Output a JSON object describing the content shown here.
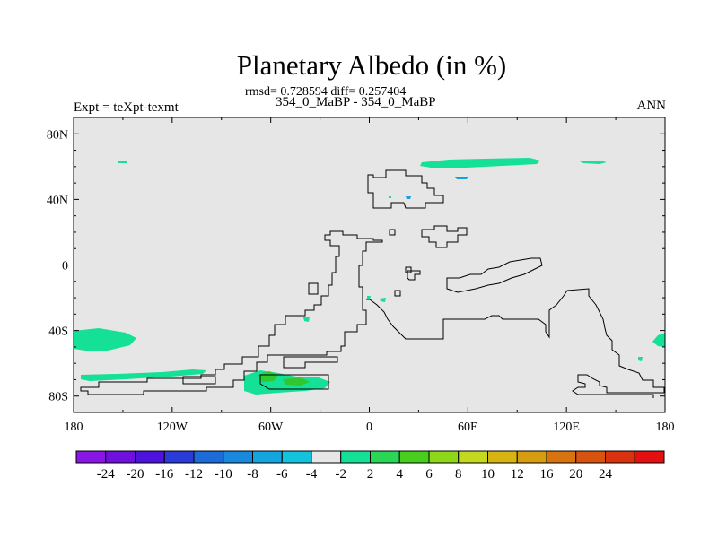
{
  "title": "Planetary Albedo (in %)",
  "stats": "rmsd= 0.728594  diff= 0.257404",
  "subtitle": "354_0_MaBP - 354_0_MaBP",
  "left_label": "Expt = teXpt-texmt",
  "right_label": "ANN",
  "colors": {
    "background_field": "#e6e6e6",
    "coast": "#000000",
    "anomaly_2_4": "#14e096",
    "anomaly_4_6": "#30c830",
    "anomaly_m4_m2": "#16a0dc"
  },
  "y_ticks": [
    {
      "value": 80,
      "label": "80N"
    },
    {
      "value": 40,
      "label": "40N"
    },
    {
      "value": 0,
      "label": "0"
    },
    {
      "value": -40,
      "label": "40S"
    },
    {
      "value": -80,
      "label": "80S"
    }
  ],
  "x_ticks": [
    {
      "value": -180,
      "label": "180"
    },
    {
      "value": -120,
      "label": "120W"
    },
    {
      "value": -60,
      "label": "60W"
    },
    {
      "value": 0,
      "label": "0"
    },
    {
      "value": 60,
      "label": "60E"
    },
    {
      "value": 120,
      "label": "120E"
    },
    {
      "value": 180,
      "label": "180"
    }
  ],
  "colorbar": {
    "colors": [
      "#8a16e6",
      "#6f10df",
      "#4d12dc",
      "#2a3bd8",
      "#1c6bd8",
      "#1889dc",
      "#15a5de",
      "#13c3de",
      "#e6e6e6",
      "#14e096",
      "#2ad656",
      "#48cf1e",
      "#8ed81a",
      "#c3d81e",
      "#d8b412",
      "#d89c10",
      "#d8740e",
      "#d8540e",
      "#d8320e",
      "#e60f0f"
    ],
    "labels": [
      "-24",
      "-20",
      "-16",
      "-12",
      "-10",
      "-8",
      "-6",
      "-4",
      "-2",
      "2",
      "4",
      "6",
      "8",
      "10",
      "12",
      "16",
      "20",
      "24"
    ]
  }
}
